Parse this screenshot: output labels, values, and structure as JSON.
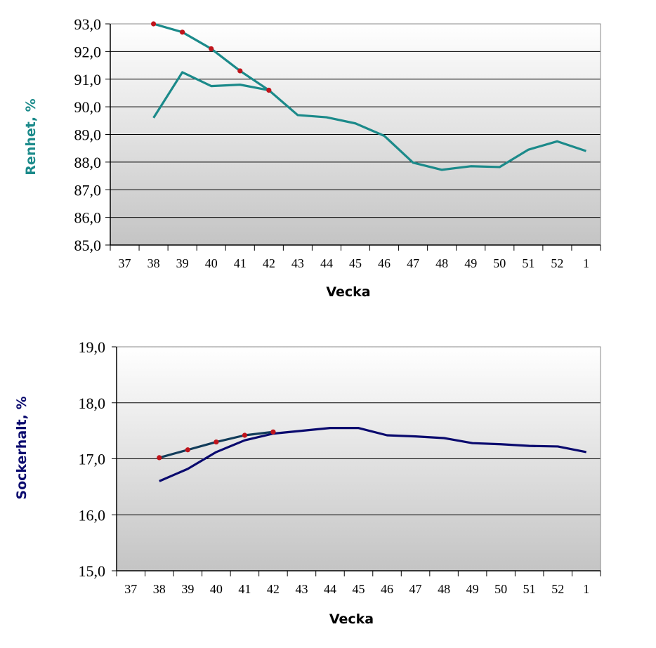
{
  "chart_data": [
    {
      "type": "line",
      "xlabel": "Vecka",
      "ylabel": "Renhet, %",
      "ylim": [
        85,
        93
      ],
      "yticks": [
        "85,0",
        "86,0",
        "87,0",
        "88,0",
        "89,0",
        "90,0",
        "91,0",
        "92,0",
        "93,0"
      ],
      "categories": [
        "37",
        "38",
        "39",
        "40",
        "41",
        "42",
        "43",
        "44",
        "45",
        "46",
        "47",
        "48",
        "49",
        "50",
        "51",
        "52",
        "1"
      ],
      "grid": true,
      "colors": {
        "main": "#1b8a8a",
        "marker": "#c0141b",
        "ylabel": "#1b8a8a"
      },
      "series": [
        {
          "values": [
            null,
            89.6,
            91.25,
            90.75,
            90.8,
            90.6,
            89.7,
            89.62,
            89.4,
            88.95,
            87.98,
            87.72,
            87.85,
            87.82,
            88.45,
            88.75,
            88.4
          ]
        },
        {
          "markers": true,
          "values": [
            null,
            93.0,
            92.7,
            92.1,
            91.3,
            90.6,
            null,
            null,
            null,
            null,
            null,
            null,
            null,
            null,
            null,
            null,
            null
          ]
        }
      ]
    },
    {
      "type": "line",
      "xlabel": "Vecka",
      "ylabel": "Sockerhalt, %",
      "ylim": [
        15,
        19
      ],
      "yticks": [
        "15,0",
        "16,0",
        "17,0",
        "18,0",
        "19,0"
      ],
      "categories": [
        "37",
        "38",
        "39",
        "40",
        "41",
        "42",
        "43",
        "44",
        "45",
        "46",
        "47",
        "48",
        "49",
        "50",
        "51",
        "52",
        "1"
      ],
      "grid": true,
      "colors": {
        "main": "#0a0a6e",
        "second": "#123c5a",
        "marker": "#c0141b",
        "ylabel": "#0a0a6e"
      },
      "series": [
        {
          "values": [
            null,
            16.6,
            16.82,
            17.12,
            17.33,
            17.45,
            17.5,
            17.55,
            17.55,
            17.42,
            17.4,
            17.37,
            17.28,
            17.26,
            17.23,
            17.22,
            17.12
          ]
        },
        {
          "markers": true,
          "values": [
            null,
            17.02,
            17.16,
            17.3,
            17.42,
            17.48,
            null,
            null,
            null,
            null,
            null,
            null,
            null,
            null,
            null,
            null,
            null
          ]
        }
      ]
    }
  ]
}
